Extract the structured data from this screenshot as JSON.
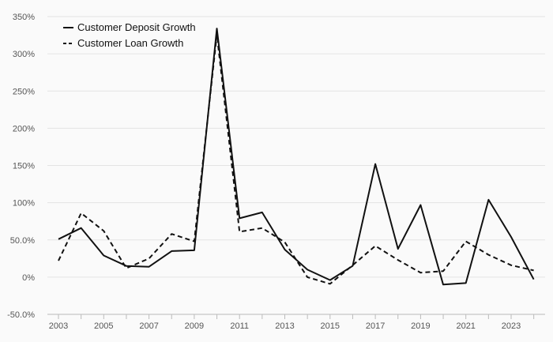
{
  "chart_data": {
    "type": "line",
    "title": "",
    "xlabel": "",
    "ylabel": "",
    "x": [
      2003,
      2004,
      2005,
      2006,
      2007,
      2008,
      2009,
      2010,
      2011,
      2012,
      2013,
      2014,
      2015,
      2016,
      2017,
      2018,
      2019,
      2020,
      2021,
      2022,
      2023,
      2024
    ],
    "x_tick_labels": [
      "2003",
      "2005",
      "2007",
      "2009",
      "2011",
      "2013",
      "2015",
      "2017",
      "2019",
      "2021",
      "2023"
    ],
    "y_tick_labels": [
      "350%",
      "300%",
      "250%",
      "200%",
      "150%",
      "100%",
      "50.0%",
      "0%",
      "-50.0%"
    ],
    "y_ticks": [
      350,
      300,
      250,
      200,
      150,
      100,
      50,
      0,
      -50
    ],
    "ylim": [
      -50,
      350
    ],
    "y_unit": "percent",
    "grid": "horizontal",
    "legend_position": "top-left",
    "series": [
      {
        "name": "Customer Deposit Growth",
        "style": "solid",
        "color": "#111111",
        "values": [
          51,
          66,
          29,
          15,
          14,
          35,
          36,
          334,
          79,
          87,
          37,
          10,
          -4,
          15,
          152,
          38,
          97,
          -10,
          -8,
          104,
          54,
          -3
        ]
      },
      {
        "name": "Customer Loan Growth",
        "style": "dashed",
        "color": "#111111",
        "values": [
          22,
          86,
          62,
          12,
          25,
          58,
          48,
          326,
          61,
          66,
          47,
          0,
          -9,
          16,
          42,
          23,
          6,
          8,
          48,
          30,
          16,
          9
        ]
      }
    ]
  }
}
